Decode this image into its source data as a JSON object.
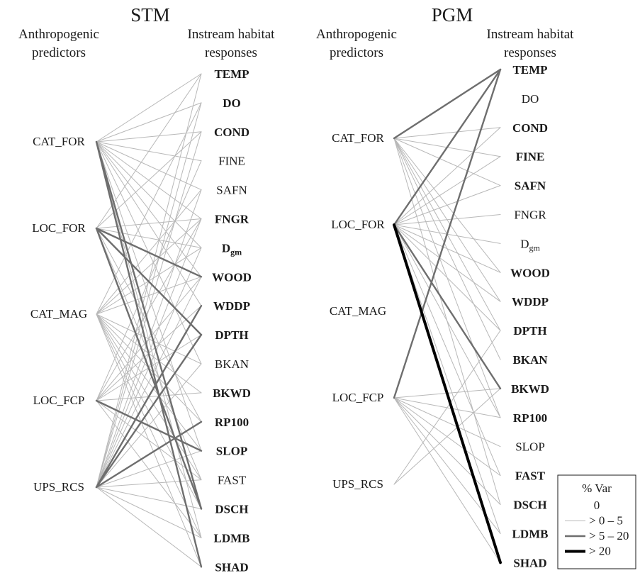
{
  "panels": [
    {
      "title": "STM",
      "predictors_heading": [
        "Anthropogenic",
        "predictors"
      ],
      "responses_heading": [
        "Instream habitat",
        "responses"
      ],
      "predictors": [
        "CAT_FOR",
        "LOC_FOR",
        "CAT_MAG",
        "LOC_FCP",
        "UPS_RCS"
      ],
      "responses": [
        {
          "label": "TEMP",
          "bold": true
        },
        {
          "label": "DO",
          "bold": true
        },
        {
          "label": "COND",
          "bold": true
        },
        {
          "label": "FINE",
          "bold": false
        },
        {
          "label": "SAFN",
          "bold": false
        },
        {
          "label": "FNGR",
          "bold": true
        },
        {
          "label": "D",
          "sub": "gm",
          "bold": true
        },
        {
          "label": "WOOD",
          "bold": true
        },
        {
          "label": "WDDP",
          "bold": true
        },
        {
          "label": "DPTH",
          "bold": true
        },
        {
          "label": "BKAN",
          "bold": false
        },
        {
          "label": "BKWD",
          "bold": true
        },
        {
          "label": "RP100",
          "bold": true
        },
        {
          "label": "SLOP",
          "bold": true
        },
        {
          "label": "FAST",
          "bold": false
        },
        {
          "label": "DSCH",
          "bold": true
        },
        {
          "label": "LDMB",
          "bold": true
        },
        {
          "label": "SHAD",
          "bold": true
        }
      ],
      "links": [
        {
          "from": "CAT_FOR",
          "to": "TEMP",
          "level": 1
        },
        {
          "from": "CAT_FOR",
          "to": "DO",
          "level": 1
        },
        {
          "from": "CAT_FOR",
          "to": "COND",
          "level": 1
        },
        {
          "from": "CAT_FOR",
          "to": "FINE",
          "level": 1
        },
        {
          "from": "CAT_FOR",
          "to": "SAFN",
          "level": 1
        },
        {
          "from": "CAT_FOR",
          "to": "FNGR",
          "level": 1
        },
        {
          "from": "CAT_FOR",
          "to": "Dgm",
          "level": 1
        },
        {
          "from": "CAT_FOR",
          "to": "WOOD",
          "level": 1
        },
        {
          "from": "CAT_FOR",
          "to": "WDDP",
          "level": 1
        },
        {
          "from": "CAT_FOR",
          "to": "BKAN",
          "level": 1
        },
        {
          "from": "CAT_FOR",
          "to": "SLOP",
          "level": 1
        },
        {
          "from": "CAT_FOR",
          "to": "LDMB",
          "level": 1
        },
        {
          "from": "CAT_FOR",
          "to": "DSCH",
          "level": 2
        },
        {
          "from": "CAT_FOR",
          "to": "SHAD",
          "level": 2
        },
        {
          "from": "LOC_FOR",
          "to": "TEMP",
          "level": 1
        },
        {
          "from": "LOC_FOR",
          "to": "COND",
          "level": 1
        },
        {
          "from": "LOC_FOR",
          "to": "FNGR",
          "level": 1
        },
        {
          "from": "LOC_FOR",
          "to": "Dgm",
          "level": 1
        },
        {
          "from": "LOC_FOR",
          "to": "RP100",
          "level": 1
        },
        {
          "from": "LOC_FOR",
          "to": "FAST",
          "level": 1
        },
        {
          "from": "LOC_FOR",
          "to": "WOOD",
          "level": 2
        },
        {
          "from": "LOC_FOR",
          "to": "DPTH",
          "level": 2
        },
        {
          "from": "LOC_FOR",
          "to": "DSCH",
          "level": 2
        },
        {
          "from": "CAT_MAG",
          "to": "DO",
          "level": 1
        },
        {
          "from": "CAT_MAG",
          "to": "SAFN",
          "level": 1
        },
        {
          "from": "CAT_MAG",
          "to": "FNGR",
          "level": 1
        },
        {
          "from": "CAT_MAG",
          "to": "Dgm",
          "level": 1
        },
        {
          "from": "CAT_MAG",
          "to": "WOOD",
          "level": 1
        },
        {
          "from": "CAT_MAG",
          "to": "BKAN",
          "level": 1
        },
        {
          "from": "CAT_MAG",
          "to": "BKWD",
          "level": 1
        },
        {
          "from": "CAT_MAG",
          "to": "RP100",
          "level": 1
        },
        {
          "from": "CAT_MAG",
          "to": "SLOP",
          "level": 1
        },
        {
          "from": "CAT_MAG",
          "to": "FAST",
          "level": 1
        },
        {
          "from": "CAT_MAG",
          "to": "DSCH",
          "level": 1
        },
        {
          "from": "CAT_MAG",
          "to": "LDMB",
          "level": 1
        },
        {
          "from": "CAT_MAG",
          "to": "SHAD",
          "level": 1
        },
        {
          "from": "LOC_FCP",
          "to": "FINE",
          "level": 1
        },
        {
          "from": "LOC_FCP",
          "to": "FNGR",
          "level": 1
        },
        {
          "from": "LOC_FCP",
          "to": "WOOD",
          "level": 1
        },
        {
          "from": "LOC_FCP",
          "to": "WDDP",
          "level": 1
        },
        {
          "from": "LOC_FCP",
          "to": "DPTH",
          "level": 1
        },
        {
          "from": "LOC_FCP",
          "to": "BKWD",
          "level": 1
        },
        {
          "from": "LOC_FCP",
          "to": "FAST",
          "level": 1
        },
        {
          "from": "LOC_FCP",
          "to": "LDMB",
          "level": 1
        },
        {
          "from": "LOC_FCP",
          "to": "SLOP",
          "level": 2
        },
        {
          "from": "UPS_RCS",
          "to": "TEMP",
          "level": 1
        },
        {
          "from": "UPS_RCS",
          "to": "DO",
          "level": 1
        },
        {
          "from": "UPS_RCS",
          "to": "COND",
          "level": 1
        },
        {
          "from": "UPS_RCS",
          "to": "SAFN",
          "level": 1
        },
        {
          "from": "UPS_RCS",
          "to": "FNGR",
          "level": 1
        },
        {
          "from": "UPS_RCS",
          "to": "Dgm",
          "level": 1
        },
        {
          "from": "UPS_RCS",
          "to": "WOOD",
          "level": 1
        },
        {
          "from": "UPS_RCS",
          "to": "BKAN",
          "level": 1
        },
        {
          "from": "UPS_RCS",
          "to": "SLOP",
          "level": 1
        },
        {
          "from": "UPS_RCS",
          "to": "FAST",
          "level": 1
        },
        {
          "from": "UPS_RCS",
          "to": "DSCH",
          "level": 1
        },
        {
          "from": "UPS_RCS",
          "to": "LDMB",
          "level": 1
        },
        {
          "from": "UPS_RCS",
          "to": "SHAD",
          "level": 1
        },
        {
          "from": "UPS_RCS",
          "to": "WDDP",
          "level": 2
        },
        {
          "from": "UPS_RCS",
          "to": "DPTH",
          "level": 2
        },
        {
          "from": "UPS_RCS",
          "to": "RP100",
          "level": 2
        }
      ]
    },
    {
      "title": "PGM",
      "predictors_heading": [
        "Anthropogenic",
        "predictors"
      ],
      "responses_heading": [
        "Instream habitat",
        "responses"
      ],
      "predictors": [
        "CAT_FOR",
        "LOC_FOR",
        "CAT_MAG",
        "LOC_FCP",
        "UPS_RCS"
      ],
      "responses": [
        {
          "label": "TEMP",
          "bold": true
        },
        {
          "label": "DO",
          "bold": false
        },
        {
          "label": "COND",
          "bold": true
        },
        {
          "label": "FINE",
          "bold": true
        },
        {
          "label": "SAFN",
          "bold": true
        },
        {
          "label": "FNGR",
          "bold": false
        },
        {
          "label": "D",
          "sub": "gm",
          "bold": false
        },
        {
          "label": "WOOD",
          "bold": true
        },
        {
          "label": "WDDP",
          "bold": true
        },
        {
          "label": "DPTH",
          "bold": true
        },
        {
          "label": "BKAN",
          "bold": true
        },
        {
          "label": "BKWD",
          "bold": true
        },
        {
          "label": "RP100",
          "bold": true
        },
        {
          "label": "SLOP",
          "bold": false
        },
        {
          "label": "FAST",
          "bold": true
        },
        {
          "label": "DSCH",
          "bold": true
        },
        {
          "label": "LDMB",
          "bold": true
        },
        {
          "label": "SHAD",
          "bold": true
        }
      ],
      "links": [
        {
          "from": "CAT_FOR",
          "to": "TEMP",
          "level": 2
        },
        {
          "from": "CAT_FOR",
          "to": "COND",
          "level": 1
        },
        {
          "from": "CAT_FOR",
          "to": "FINE",
          "level": 1
        },
        {
          "from": "CAT_FOR",
          "to": "SAFN",
          "level": 1
        },
        {
          "from": "CAT_FOR",
          "to": "WOOD",
          "level": 1
        },
        {
          "from": "CAT_FOR",
          "to": "WDDP",
          "level": 1
        },
        {
          "from": "CAT_FOR",
          "to": "DPTH",
          "level": 1
        },
        {
          "from": "CAT_FOR",
          "to": "BKAN",
          "level": 1
        },
        {
          "from": "CAT_FOR",
          "to": "RP100",
          "level": 1
        },
        {
          "from": "CAT_FOR",
          "to": "DSCH",
          "level": 1
        },
        {
          "from": "LOC_FOR",
          "to": "TEMP",
          "level": 2
        },
        {
          "from": "LOC_FOR",
          "to": "COND",
          "level": 1
        },
        {
          "from": "LOC_FOR",
          "to": "FINE",
          "level": 1
        },
        {
          "from": "LOC_FOR",
          "to": "SAFN",
          "level": 1
        },
        {
          "from": "LOC_FOR",
          "to": "FNGR",
          "level": 1
        },
        {
          "from": "LOC_FOR",
          "to": "Dgm",
          "level": 1
        },
        {
          "from": "LOC_FOR",
          "to": "WOOD",
          "level": 1
        },
        {
          "from": "LOC_FOR",
          "to": "WDDP",
          "level": 1
        },
        {
          "from": "LOC_FOR",
          "to": "DPTH",
          "level": 1
        },
        {
          "from": "LOC_FOR",
          "to": "RP100",
          "level": 1
        },
        {
          "from": "LOC_FOR",
          "to": "FAST",
          "level": 1
        },
        {
          "from": "LOC_FOR",
          "to": "LDMB",
          "level": 1
        },
        {
          "from": "LOC_FOR",
          "to": "BKWD",
          "level": 2
        },
        {
          "from": "LOC_FOR",
          "to": "SHAD",
          "level": 3
        },
        {
          "from": "LOC_FCP",
          "to": "TEMP",
          "level": 2
        },
        {
          "from": "LOC_FCP",
          "to": "BKWD",
          "level": 1
        },
        {
          "from": "LOC_FCP",
          "to": "RP100",
          "level": 1
        },
        {
          "from": "LOC_FCP",
          "to": "SLOP",
          "level": 1
        },
        {
          "from": "LOC_FCP",
          "to": "FAST",
          "level": 1
        },
        {
          "from": "LOC_FCP",
          "to": "DSCH",
          "level": 1
        },
        {
          "from": "LOC_FCP",
          "to": "LDMB",
          "level": 1
        },
        {
          "from": "LOC_FCP",
          "to": "SHAD",
          "level": 1
        },
        {
          "from": "UPS_RCS",
          "to": "DPTH",
          "level": 1
        },
        {
          "from": "UPS_RCS",
          "to": "BKWD",
          "level": 1
        }
      ]
    }
  ],
  "legend": {
    "title": "% Var",
    "items": [
      {
        "label": "0",
        "level": 0
      },
      {
        "label": "> 0 – 5",
        "level": 1
      },
      {
        "label": "> 5 – 20",
        "level": 2
      },
      {
        "label": "> 20",
        "level": 3
      }
    ]
  },
  "styles": {
    "level_colors": [
      "#ffffff",
      "#b8b8b8",
      "#6e6e6e",
      "#000000"
    ]
  }
}
